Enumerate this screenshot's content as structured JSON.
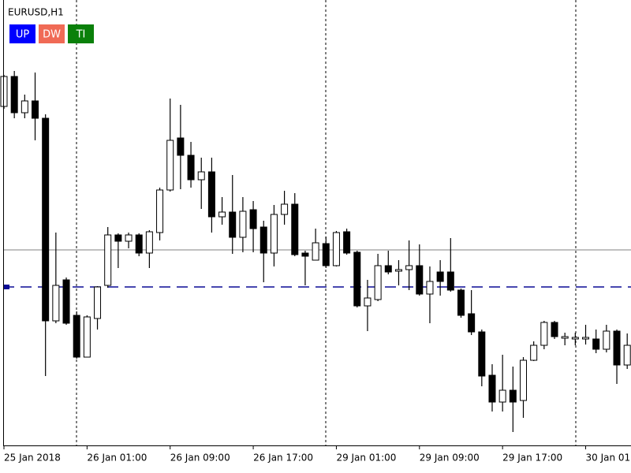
{
  "chart_data": {
    "type": "candlestick",
    "title": "EURUSD,H1",
    "categories": [
      "25 Jan 2018",
      null,
      null,
      null,
      null,
      null,
      null,
      null,
      "26 Jan 01:00",
      null,
      null,
      null,
      null,
      null,
      null,
      null,
      "26 Jan 09:00",
      null,
      null,
      null,
      null,
      null,
      null,
      null,
      "26 Jan 17:00",
      null,
      null,
      null,
      null,
      null,
      null,
      null,
      "29 Jan 01:00",
      null,
      null,
      null,
      null,
      null,
      null,
      null,
      "29 Jan 09:00",
      null,
      null,
      null,
      null,
      null,
      null,
      null,
      "29 Jan 17:00",
      null,
      null,
      null,
      null,
      null,
      null,
      null,
      "30 Jan 01:00",
      null,
      null,
      null,
      null
    ],
    "open": [
      430,
      468,
      422,
      437,
      415,
      158,
      210,
      165,
      112,
      161,
      203,
      267,
      259,
      267,
      244,
      270,
      324,
      390,
      368,
      337,
      347,
      290,
      296,
      264,
      299,
      277,
      244,
      293,
      306,
      244,
      235,
      256,
      228,
      271,
      245,
      177,
      185,
      228,
      221,
      223,
      228,
      192,
      220,
      220,
      197,
      167,
      144,
      89,
      55,
      70,
      57,
      108,
      127,
      156,
      136,
      135,
      135,
      135,
      122,
      145,
      102
    ],
    "high": [
      470,
      475,
      445,
      473,
      420,
      270,
      213,
      170,
      165,
      202,
      277,
      269,
      270,
      269,
      273,
      327,
      440,
      432,
      385,
      365,
      365,
      315,
      343,
      315,
      310,
      285,
      305,
      323,
      320,
      247,
      275,
      265,
      272,
      275,
      247,
      210,
      243,
      247,
      235,
      260,
      255,
      227,
      235,
      263,
      199,
      197,
      147,
      103,
      115,
      100,
      112,
      132,
      158,
      158,
      143,
      143,
      153,
      147,
      153,
      147,
      142
    ],
    "low": [
      427,
      415,
      415,
      387,
      88,
      155,
      153,
      110,
      112,
      147,
      200,
      225,
      250,
      240,
      225,
      260,
      322,
      325,
      327,
      300,
      270,
      280,
      243,
      245,
      245,
      207,
      227,
      280,
      240,
      203,
      235,
      225,
      227,
      242,
      175,
      145,
      183,
      217,
      203,
      197,
      190,
      155,
      190,
      195,
      162,
      140,
      75,
      43,
      43,
      17,
      35,
      107,
      122,
      135,
      127,
      127,
      128,
      117,
      118,
      78,
      97
    ],
    "close": [
      468,
      422,
      437,
      415,
      158,
      203,
      155,
      112,
      163,
      201,
      267,
      259,
      267,
      244,
      271,
      324,
      387,
      368,
      337,
      347,
      290,
      296,
      264,
      297,
      275,
      244,
      293,
      306,
      242,
      240,
      257,
      228,
      270,
      244,
      177,
      187,
      228,
      220,
      223,
      228,
      192,
      208,
      208,
      197,
      165,
      144,
      88,
      55,
      70,
      55,
      108,
      127,
      156,
      138,
      138,
      137,
      137,
      122,
      145,
      102,
      127
    ],
    "up_color": "#ffffff",
    "down_color": "#000000",
    "outline_color": "#000000",
    "ylim": [
      0,
      560
    ],
    "levels": [
      {
        "value": 248,
        "color": "#c0c0c0",
        "style": "solid"
      },
      {
        "value": 201,
        "color": "#0a0a96",
        "style": "dashed"
      }
    ]
  },
  "buttons": [
    {
      "label": "UP",
      "color": "#0000ff"
    },
    {
      "label": "DW",
      "color": "#f06a55"
    },
    {
      "label": "TI",
      "color": "#0a800a"
    }
  ]
}
